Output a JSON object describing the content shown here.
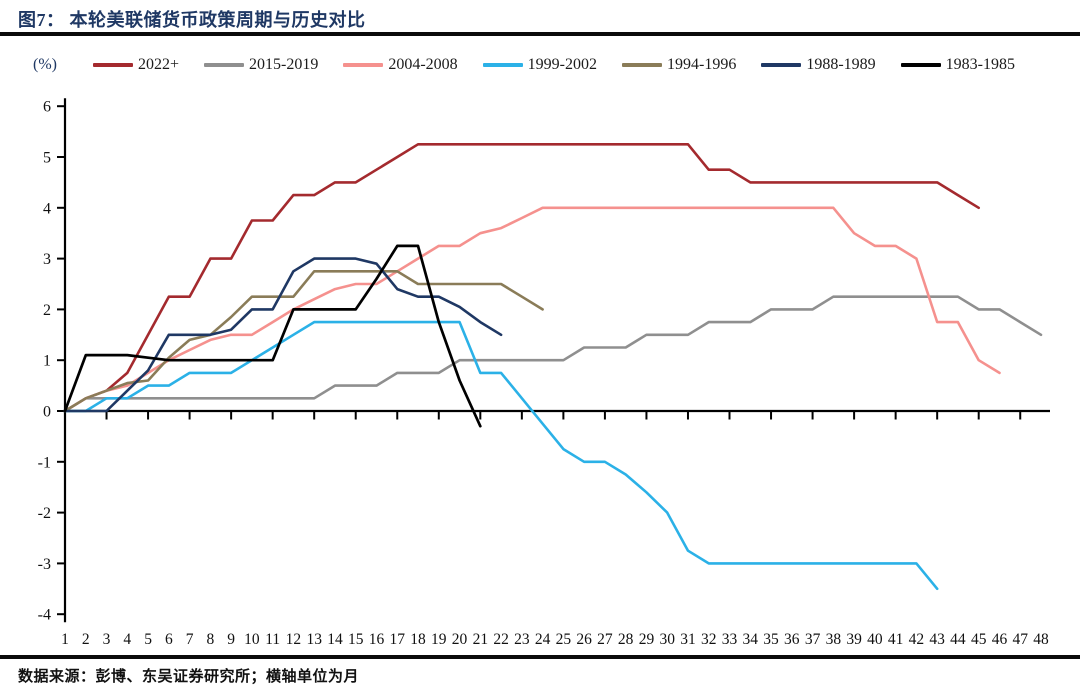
{
  "figure": {
    "title": "图7： 本轮美联储货币政策周期与历史对比",
    "unit_label": "(%)",
    "source_note": "数据来源：彭博、东吴证券研究所；横轴单位为月"
  },
  "chart_data": {
    "type": "line",
    "title": "本轮美联储货币政策周期与历史对比",
    "xlabel": "月 (month)",
    "ylabel": "(%)",
    "xlim": [
      1,
      48
    ],
    "ylim": [
      -4,
      6
    ],
    "grid": false,
    "legend_position": "top",
    "x_ticks": [
      1,
      2,
      3,
      4,
      5,
      6,
      7,
      8,
      9,
      10,
      11,
      12,
      13,
      14,
      15,
      16,
      17,
      18,
      19,
      20,
      21,
      22,
      23,
      24,
      25,
      26,
      27,
      28,
      29,
      30,
      31,
      32,
      33,
      34,
      35,
      36,
      37,
      38,
      39,
      40,
      41,
      42,
      43,
      44,
      45,
      46,
      47,
      48
    ],
    "y_ticks": [
      6,
      5,
      4,
      3,
      2,
      1,
      0,
      -1,
      -2,
      -3,
      -4
    ],
    "series": [
      {
        "name": "2022+",
        "color": "#A42A2E",
        "values": [
          0,
          0.25,
          0.4,
          0.75,
          1.5,
          2.25,
          2.25,
          3,
          3,
          3.75,
          3.75,
          4.25,
          4.25,
          4.5,
          4.5,
          4.75,
          5,
          5.25,
          5.25,
          5.25,
          5.25,
          5.25,
          5.25,
          5.25,
          5.25,
          5.25,
          5.25,
          5.25,
          5.25,
          5.25,
          5.25,
          4.75,
          4.75,
          4.5,
          4.5,
          4.5,
          4.5,
          4.5,
          4.5,
          4.5,
          4.5,
          4.5,
          4.5,
          4.25,
          4
        ]
      },
      {
        "name": "2015-2019",
        "color": "#8F8F8F",
        "values": [
          0,
          0.25,
          0.25,
          0.25,
          0.25,
          0.25,
          0.25,
          0.25,
          0.25,
          0.25,
          0.25,
          0.25,
          0.25,
          0.5,
          0.5,
          0.5,
          0.75,
          0.75,
          0.75,
          1,
          1,
          1,
          1,
          1,
          1,
          1.25,
          1.25,
          1.25,
          1.5,
          1.5,
          1.5,
          1.75,
          1.75,
          1.75,
          2,
          2,
          2,
          2.25,
          2.25,
          2.25,
          2.25,
          2.25,
          2.25,
          2.25,
          2,
          2,
          1.75,
          1.5
        ]
      },
      {
        "name": "2004-2008",
        "color": "#F5918E",
        "values": [
          0,
          0.25,
          0.4,
          0.5,
          0.75,
          1,
          1.2,
          1.4,
          1.5,
          1.5,
          1.75,
          2,
          2.2,
          2.4,
          2.5,
          2.5,
          2.75,
          3,
          3.25,
          3.25,
          3.5,
          3.6,
          3.8,
          4,
          4,
          4,
          4,
          4,
          4,
          4,
          4,
          4,
          4,
          4,
          4,
          4,
          4,
          4,
          3.5,
          3.25,
          3.25,
          3,
          1.75,
          1.75,
          1,
          0.75
        ]
      },
      {
        "name": "1999-2002",
        "color": "#2BB1E7",
        "values": [
          0,
          0,
          0.25,
          0.25,
          0.5,
          0.5,
          0.75,
          0.75,
          0.75,
          1,
          1.25,
          1.5,
          1.75,
          1.75,
          1.75,
          1.75,
          1.75,
          1.75,
          1.75,
          1.75,
          0.75,
          0.75,
          0.25,
          -0.25,
          -0.75,
          -1,
          -1,
          -1.25,
          -1.6,
          -2,
          -2.75,
          -3,
          -3,
          -3,
          -3,
          -3,
          -3,
          -3,
          -3,
          -3,
          -3,
          -3,
          -3.5
        ]
      },
      {
        "name": "1994-1996",
        "color": "#8A7C58",
        "values": [
          0,
          0.25,
          0.4,
          0.55,
          0.6,
          1.05,
          1.4,
          1.5,
          1.85,
          2.25,
          2.25,
          2.25,
          2.75,
          2.75,
          2.75,
          2.75,
          2.75,
          2.5,
          2.5,
          2.5,
          2.5,
          2.5,
          2.25,
          2
        ]
      },
      {
        "name": "1988-1989",
        "color": "#1F3864",
        "values": [
          0,
          0,
          0,
          0.4,
          0.8,
          1.5,
          1.5,
          1.5,
          1.6,
          2,
          2,
          2.75,
          3,
          3,
          3,
          2.9,
          2.4,
          2.25,
          2.25,
          2.05,
          1.75,
          1.5
        ]
      },
      {
        "name": "1983-1985",
        "color": "#000000",
        "values": [
          0,
          1.1,
          1.1,
          1.1,
          1.05,
          1,
          1,
          1,
          1,
          1,
          1,
          2,
          2,
          2,
          2,
          2.6,
          3.25,
          3.25,
          1.75,
          0.6,
          -0.3
        ]
      }
    ]
  }
}
